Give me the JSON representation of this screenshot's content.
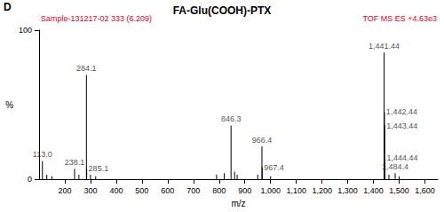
{
  "chart_data": {
    "type": "stem",
    "panel": "D",
    "title": "FA-Glu(COOH)-PTX",
    "notes": [
      "Sample-131217-02 333 (6.209)",
      "TOF MS ES +4.63e3"
    ],
    "x_label": "m/z",
    "y_label": "%",
    "x": [
      113.0,
      130,
      150,
      238.1,
      255,
      284.1,
      285.1,
      300,
      320,
      790,
      820,
      846.3,
      860,
      870,
      950,
      966.4,
      967.4,
      1000,
      1441.44,
      1442.44,
      1443.44,
      1444.44,
      1460,
      1484.4,
      1500
    ],
    "values": [
      12,
      3,
      2,
      7,
      3,
      70,
      7,
      3,
      2,
      3,
      4,
      36,
      5,
      3,
      3,
      22,
      8,
      2,
      85,
      45,
      36,
      14,
      3,
      4,
      2
    ],
    "peak_labels": [
      "113.0",
      null,
      null,
      "238.1",
      null,
      "284.1",
      "285.1",
      null,
      null,
      null,
      null,
      "846.3",
      null,
      null,
      null,
      "966.4",
      "967.4",
      null,
      "1,441.44",
      "1,442.44",
      "1,443.44",
      "1,444.44",
      null,
      "1,484.4",
      null
    ],
    "color": "#000000",
    "xlim": [
      100,
      1650
    ],
    "xticks": [
      200,
      300,
      400,
      500,
      600,
      700,
      800,
      900,
      {
        "value": 1000,
        "label": "1,000"
      },
      {
        "value": 1100,
        "label": "1,100"
      },
      {
        "value": 1200,
        "label": "1,200"
      },
      {
        "value": 1300,
        "label": "1,300"
      },
      {
        "value": 1400,
        "label": "1,400"
      },
      {
        "value": 1500,
        "label": "1,500"
      },
      {
        "value": 1600,
        "label": "1,600"
      }
    ],
    "ylim": [
      0,
      100
    ],
    "yticks": [
      0,
      100
    ],
    "grid": false
  }
}
